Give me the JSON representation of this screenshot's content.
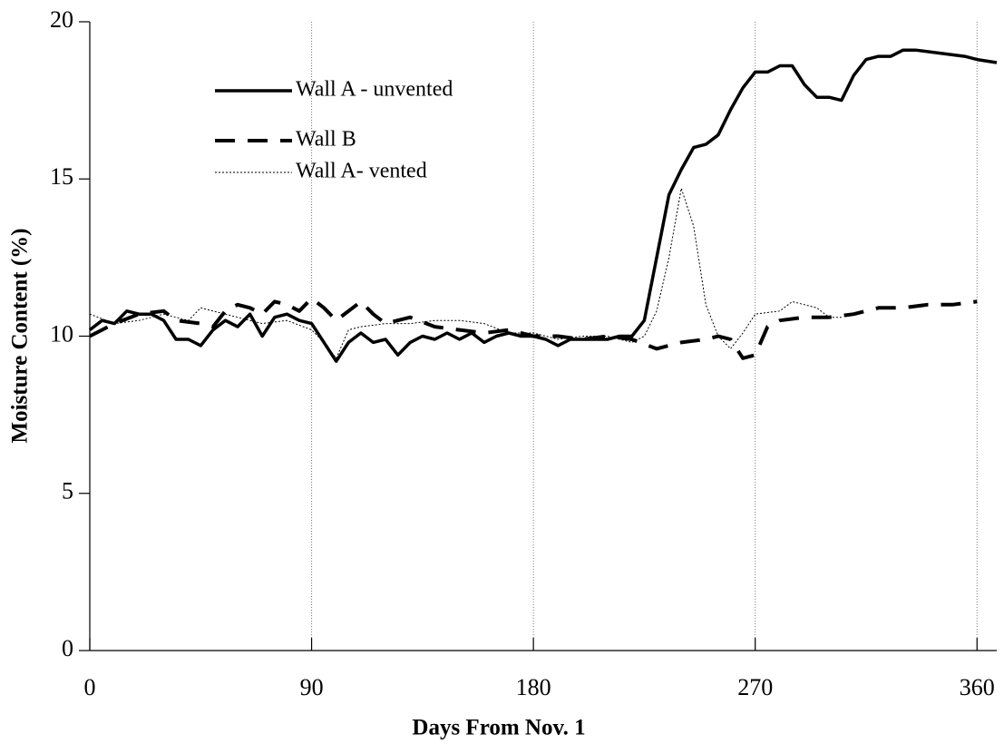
{
  "chart_data": {
    "type": "line",
    "xlabel": "Days From Nov. 1",
    "ylabel": "Moisture Content (%)",
    "xlim": [
      0,
      368
    ],
    "ylim": [
      0,
      20
    ],
    "xticks": [
      0,
      90,
      180,
      270,
      360
    ],
    "yticks": [
      0,
      5,
      10,
      15,
      20
    ],
    "xgrid": true,
    "legend": "upper left",
    "series": [
      {
        "name": "Wall A - unvented",
        "color": "#000000",
        "style": "solid",
        "x": [
          0,
          5,
          10,
          15,
          20,
          25,
          30,
          35,
          40,
          45,
          50,
          55,
          60,
          65,
          70,
          75,
          80,
          85,
          90,
          95,
          100,
          105,
          110,
          115,
          120,
          125,
          130,
          135,
          140,
          145,
          150,
          155,
          160,
          165,
          170,
          175,
          180,
          185,
          190,
          195,
          200,
          205,
          210,
          215,
          220,
          225,
          230,
          235,
          240,
          245,
          250,
          255,
          260,
          265,
          270,
          275,
          280,
          285,
          290,
          295,
          300,
          305,
          310,
          315,
          320,
          325,
          330,
          335,
          345,
          355,
          360,
          368
        ],
        "values": [
          10.2,
          10.5,
          10.4,
          10.8,
          10.7,
          10.7,
          10.5,
          9.9,
          9.9,
          9.7,
          10.2,
          10.5,
          10.3,
          10.7,
          10.0,
          10.6,
          10.7,
          10.5,
          10.4,
          9.8,
          9.2,
          9.8,
          10.1,
          9.8,
          9.9,
          9.4,
          9.8,
          10.0,
          9.9,
          10.1,
          9.9,
          10.1,
          9.8,
          10.0,
          10.1,
          10.0,
          10.0,
          9.9,
          9.7,
          9.9,
          9.9,
          9.9,
          9.9,
          10.0,
          10.0,
          10.5,
          12.5,
          14.5,
          15.3,
          16.0,
          16.1,
          16.4,
          17.2,
          17.9,
          18.4,
          18.4,
          18.6,
          18.6,
          18.0,
          17.6,
          17.6,
          17.5,
          18.3,
          18.8,
          18.9,
          18.9,
          19.1,
          19.1,
          19.0,
          18.9,
          18.8,
          18.7
        ]
      },
      {
        "name": "Wall B",
        "color": "#000000",
        "style": "dash",
        "x": [
          0,
          10,
          20,
          30,
          35,
          45,
          50,
          55,
          60,
          65,
          70,
          75,
          80,
          85,
          90,
          95,
          100,
          105,
          110,
          115,
          120,
          130,
          140,
          150,
          160,
          170,
          180,
          190,
          200,
          210,
          220,
          230,
          240,
          250,
          255,
          260,
          265,
          270,
          275,
          280,
          290,
          300,
          310,
          320,
          330,
          340,
          350,
          360
        ],
        "values": [
          10.0,
          10.4,
          10.7,
          10.8,
          10.5,
          10.4,
          10.3,
          10.8,
          11.0,
          10.9,
          10.7,
          11.1,
          11.0,
          10.8,
          11.2,
          10.9,
          10.5,
          10.8,
          11.1,
          10.7,
          10.4,
          10.6,
          10.3,
          10.2,
          10.1,
          10.2,
          10.0,
          10.0,
          9.9,
          10.0,
          9.9,
          9.6,
          9.8,
          9.9,
          10.0,
          9.9,
          9.3,
          9.4,
          10.3,
          10.5,
          10.6,
          10.6,
          10.7,
          10.9,
          10.9,
          11.0,
          11.0,
          11.1
        ]
      },
      {
        "name": "Wall A- vented",
        "color": "#000000",
        "style": "dot",
        "x": [
          0,
          10,
          20,
          30,
          40,
          45,
          50,
          60,
          70,
          80,
          90,
          95,
          100,
          105,
          110,
          120,
          130,
          140,
          150,
          160,
          170,
          180,
          190,
          200,
          210,
          220,
          225,
          230,
          235,
          240,
          245,
          250,
          255,
          260,
          265,
          270,
          280,
          285,
          295,
          300,
          305
        ],
        "values": [
          10.7,
          10.4,
          10.5,
          10.7,
          10.5,
          10.9,
          10.8,
          10.6,
          10.4,
          10.5,
          10.2,
          9.8,
          9.3,
          10.2,
          10.3,
          10.4,
          10.4,
          10.5,
          10.5,
          10.4,
          10.1,
          10.1,
          9.9,
          10.0,
          10.0,
          9.8,
          10.0,
          10.8,
          12.5,
          14.7,
          13.5,
          11.0,
          10.0,
          9.6,
          10.1,
          10.7,
          10.8,
          11.1,
          10.9,
          10.6,
          10.6
        ]
      }
    ]
  }
}
